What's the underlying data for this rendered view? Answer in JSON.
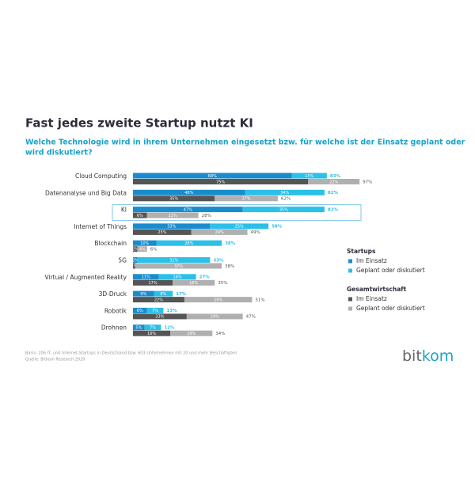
{
  "chart_data": {
    "type": "stacked-bar-horizontal",
    "title": "Fast jedes zweite Startup nutzt KI",
    "subtitle": [
      "Welche Technologie wird in ihrem Unternehmen eingesetzt bzw. für welche ist der Einsatz geplant oder",
      "wird diskutiert?"
    ],
    "categories": [
      "Cloud Computing",
      "Datenanalyse und Big Data",
      "KI",
      "Internet of Things",
      "Blockchain",
      "5G",
      "Virtual / Augmented Reality",
      "3D-Druck",
      "Robotik",
      "Drohnen"
    ],
    "highlight": "KI",
    "series": [
      {
        "group": "Startups",
        "name": "Im Einsatz",
        "color": "#1a8ccc",
        "stack": 0,
        "values": [
          68,
          48,
          47,
          33,
          10,
          2,
          11,
          9,
          6,
          5
        ],
        "value_labels": [
          "68%",
          "48%",
          "47%",
          "33%",
          "10%",
          "2%",
          "11%",
          "9%",
          "6%",
          "5%"
        ]
      },
      {
        "group": "Startups",
        "name": "Geplant oder diskutiert",
        "color": "#2bc0e8",
        "stack": 0,
        "values": [
          15,
          34,
          35,
          25,
          28,
          31,
          16,
          8,
          7,
          7
        ],
        "value_labels": [
          "15%",
          "34%",
          "35%",
          "25%",
          "28%",
          "31%",
          "16%",
          "8%",
          "7%",
          "7%"
        ]
      },
      {
        "group": "Gesamtwirtschaft",
        "name": "Im Einsatz",
        "color": "#555555",
        "stack": 1,
        "values": [
          75,
          35,
          6,
          25,
          2,
          1,
          17,
          22,
          23,
          16
        ],
        "value_labels": [
          "75%",
          "35%",
          "6%",
          "25%",
          "2%",
          "1%",
          "17%",
          "22%",
          "23%",
          "16%"
        ]
      },
      {
        "group": "Gesamtwirtschaft",
        "name": "Geplant oder diskutiert",
        "color": "#b0b0b0",
        "stack": 1,
        "values": [
          22,
          27,
          22,
          24,
          4,
          37,
          18,
          29,
          24,
          18
        ],
        "value_labels": [
          "22%",
          "27%",
          "22%",
          "24%",
          "4%",
          "37%",
          "18%",
          "29%",
          "24%",
          "18%"
        ]
      }
    ],
    "totals": [
      {
        "values": [
          83,
          82,
          82,
          58,
          38,
          33,
          27,
          17,
          13,
          12
        ],
        "color": "#2bc0e8",
        "value_labels": [
          "83%",
          "82%",
          "82%",
          "58%",
          "38%",
          "33%",
          "27%",
          "17%",
          "13%",
          "12%"
        ]
      },
      {
        "values": [
          97,
          62,
          28,
          49,
          6,
          38,
          35,
          51,
          47,
          34
        ],
        "color": "#555555",
        "value_labels": [
          "97%",
          "62%",
          "28%",
          "49%",
          "6%",
          "38%",
          "35%",
          "51%",
          "47%",
          "34%"
        ]
      }
    ],
    "notes": [
      "Basis: 206 IT- und Internet-Startups in Deutschland bzw. 603 Unternehmen mit 20 und mehr Beschäftigten",
      "Quelle: Bitkom Research 2020"
    ],
    "logo": [
      "bit",
      "kom"
    ]
  }
}
